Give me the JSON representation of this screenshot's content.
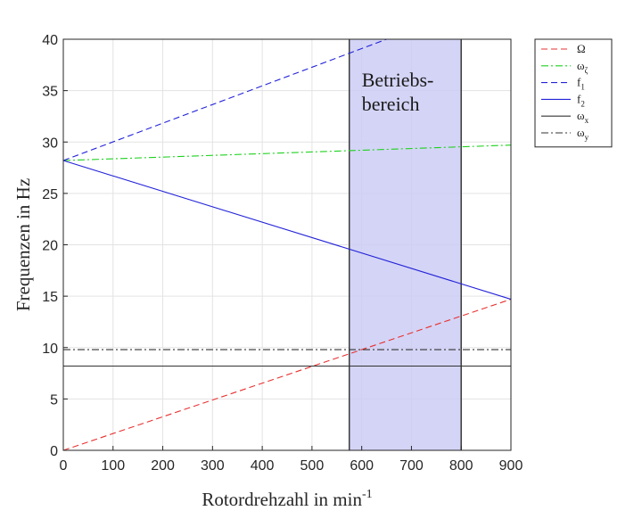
{
  "chart_data": {
    "type": "line",
    "xlabel": "Rotordrehzahl in min",
    "xlabel_sup": "-1",
    "ylabel": "Frequenzen in Hz",
    "xlim": [
      0,
      900
    ],
    "ylim": [
      0,
      40
    ],
    "xticks": [
      0,
      100,
      200,
      300,
      400,
      500,
      600,
      700,
      800,
      900
    ],
    "yticks": [
      0,
      5,
      10,
      15,
      20,
      25,
      30,
      35,
      40
    ],
    "grid": true,
    "legend_position": "outside-right-top",
    "region": {
      "x_range": [
        575,
        800
      ],
      "label_lines": [
        "Betriebs-",
        "bereich"
      ],
      "fill_color": "#ccccf5",
      "edge_color": "#3a3a3a"
    },
    "series": [
      {
        "name": "Ω",
        "subscript": "",
        "color": "#e8302f",
        "dash": "dashed",
        "x": [
          0,
          900
        ],
        "y": [
          0,
          14.7
        ]
      },
      {
        "name": "ω",
        "subscript": "ζ",
        "color": "#1fd11f",
        "dash": "dashdot",
        "x": [
          0,
          900
        ],
        "y": [
          28.2,
          29.7
        ]
      },
      {
        "name": "f",
        "subscript": "1",
        "color": "#2323d9",
        "dash": "dashed",
        "x": [
          0,
          650
        ],
        "y": [
          28.2,
          40.0
        ]
      },
      {
        "name": "f",
        "subscript": "2",
        "color": "#2323d9",
        "dash": "solid",
        "x": [
          0,
          900
        ],
        "y": [
          28.2,
          14.7
        ]
      },
      {
        "name": "ω",
        "subscript": "x",
        "color": "#333333",
        "dash": "solid",
        "x": [
          0,
          900
        ],
        "y": [
          8.2,
          8.2
        ]
      },
      {
        "name": "ω",
        "subscript": "y",
        "color": "#333333",
        "dash": "dashdot",
        "x": [
          0,
          900
        ],
        "y": [
          9.8,
          9.8
        ]
      }
    ]
  }
}
